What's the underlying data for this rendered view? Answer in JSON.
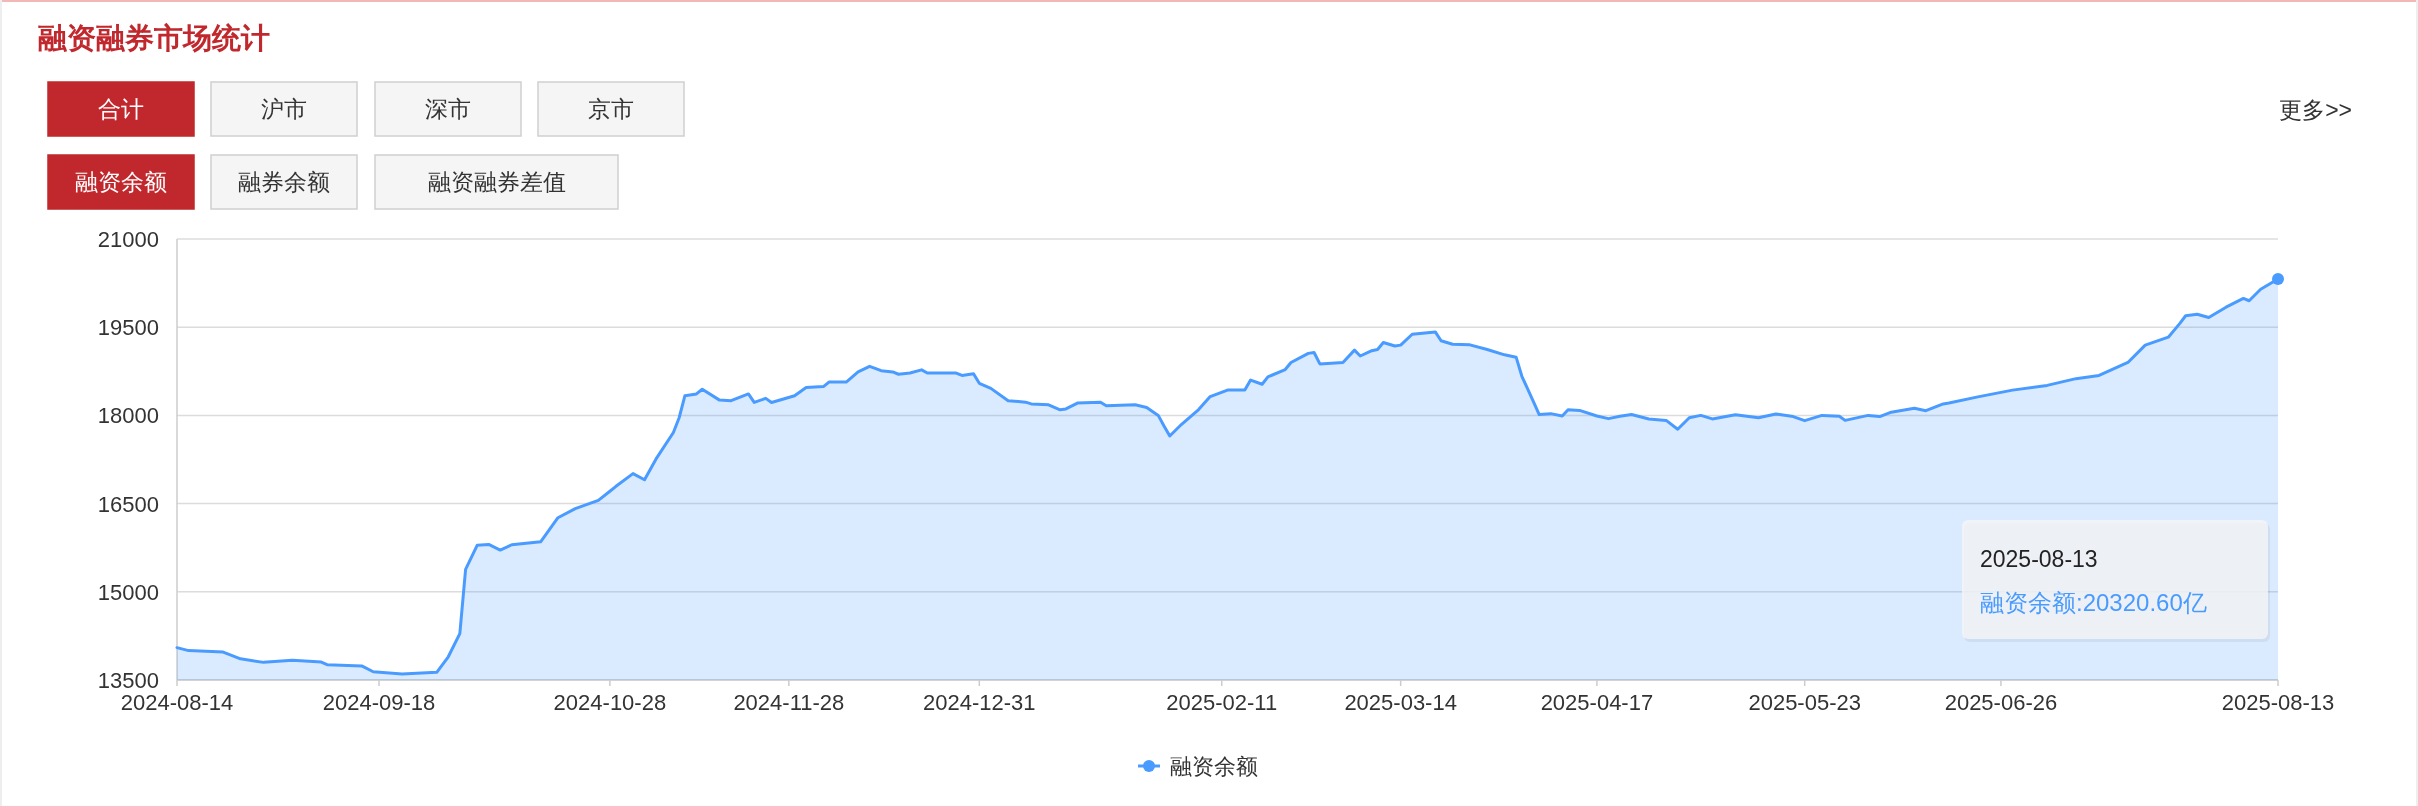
{
  "chart_data": {
    "type": "area",
    "title": "融资融券市场统计",
    "xlim": [
      "2024-08-14",
      "2025-08-13"
    ],
    "xticks": [
      "2024-08-14",
      "2024-09-18",
      "2024-10-28",
      "2024-11-28",
      "2024-12-31",
      "2025-02-11",
      "2025-03-14",
      "2025-04-17",
      "2025-05-23",
      "2025-06-26",
      "2025-08-13"
    ],
    "ylim": [
      13500,
      21000
    ],
    "yticks": [
      13500,
      15000,
      16500,
      18000,
      19500,
      21000
    ],
    "grid": "y",
    "legend": "bottom",
    "series": [
      {
        "name": "融资余额",
        "color": "#4a9bff",
        "x": [
          "2024-08-14",
          "2024-08-16",
          "2024-08-22",
          "2024-08-25",
          "2024-08-29",
          "2024-09-03",
          "2024-09-08",
          "2024-09-09",
          "2024-09-15",
          "2024-09-17",
          "2024-09-22",
          "2024-09-28",
          "2024-09-30",
          "2024-10-02",
          "2024-10-03",
          "2024-10-05",
          "2024-10-07",
          "2024-10-09",
          "2024-10-11",
          "2024-10-16",
          "2024-10-19",
          "2024-10-22",
          "2024-10-26",
          "2024-10-28",
          "2024-10-29",
          "2024-11-01",
          "2024-11-03",
          "2024-11-05",
          "2024-11-08",
          "2024-11-09",
          "2024-11-10",
          "2024-11-12",
          "2024-11-13",
          "2024-11-16",
          "2024-11-18",
          "2024-11-21",
          "2024-11-22",
          "2024-11-24",
          "2024-11-25",
          "2024-11-29",
          "2024-12-01",
          "2024-12-04",
          "2024-12-05",
          "2024-12-08",
          "2024-12-10",
          "2024-12-12",
          "2024-12-14",
          "2024-12-16",
          "2024-12-17",
          "2024-12-19",
          "2024-12-21",
          "2024-12-22",
          "2024-12-27",
          "2024-12-28",
          "2024-12-30",
          "2024-12-31",
          "2025-01-02",
          "2025-01-05",
          "2025-01-08",
          "2025-01-09",
          "2025-01-12",
          "2025-01-14",
          "2025-01-15",
          "2025-01-17",
          "2025-01-21",
          "2025-01-22",
          "2025-01-27",
          "2025-01-29",
          "2025-01-31",
          "2025-02-01",
          "2025-02-02",
          "2025-02-04",
          "2025-02-07",
          "2025-02-09",
          "2025-02-12",
          "2025-02-15",
          "2025-02-16",
          "2025-02-18",
          "2025-02-19",
          "2025-02-22",
          "2025-02-23",
          "2025-02-26",
          "2025-02-27",
          "2025-02-28",
          "2025-03-04",
          "2025-03-06",
          "2025-03-07",
          "2025-03-09",
          "2025-03-10",
          "2025-03-11",
          "2025-03-13",
          "2025-03-14",
          "2025-03-16",
          "2025-03-20",
          "2025-03-21",
          "2025-03-23",
          "2025-03-26",
          "2025-03-29",
          "2025-04-01",
          "2025-04-03",
          "2025-04-04",
          "2025-04-06",
          "2025-04-07",
          "2025-04-09",
          "2025-04-11",
          "2025-04-12",
          "2025-04-14",
          "2025-04-17",
          "2025-04-19",
          "2025-04-21",
          "2025-04-23",
          "2025-04-26",
          "2025-04-29",
          "2025-05-01",
          "2025-05-03",
          "2025-05-05",
          "2025-05-07",
          "2025-05-11",
          "2025-05-15",
          "2025-05-18",
          "2025-05-21",
          "2025-05-23",
          "2025-05-26",
          "2025-05-29",
          "2025-05-30",
          "2025-06-03",
          "2025-06-05",
          "2025-06-07",
          "2025-06-11",
          "2025-06-13",
          "2025-06-16",
          "2025-06-17",
          "2025-06-22",
          "2025-06-28",
          "2025-07-04",
          "2025-07-09",
          "2025-07-13",
          "2025-07-18",
          "2025-07-21",
          "2025-07-25",
          "2025-07-27",
          "2025-07-28",
          "2025-07-30",
          "2025-08-01",
          "2025-08-04",
          "2025-08-07",
          "2025-08-08",
          "2025-08-10",
          "2025-08-13"
        ],
        "values": [
          14050,
          14000,
          13975,
          13860,
          13800,
          13835,
          13805,
          13760,
          13740,
          13640,
          13600,
          13630,
          13895,
          14290,
          15380,
          15790,
          15805,
          15710,
          15800,
          15850,
          16260,
          16415,
          16555,
          16710,
          16790,
          17010,
          16905,
          17260,
          17710,
          17960,
          18335,
          18365,
          18445,
          18260,
          18250,
          18365,
          18220,
          18290,
          18220,
          18335,
          18475,
          18490,
          18570,
          18570,
          18740,
          18835,
          18760,
          18740,
          18700,
          18720,
          18775,
          18720,
          18720,
          18680,
          18710,
          18545,
          18460,
          18250,
          18225,
          18195,
          18180,
          18095,
          18110,
          18210,
          18225,
          18165,
          18180,
          18135,
          18000,
          17820,
          17650,
          17845,
          18100,
          18320,
          18430,
          18430,
          18600,
          18530,
          18655,
          18780,
          18900,
          19055,
          19070,
          18875,
          18900,
          19110,
          19010,
          19100,
          19120,
          19240,
          19180,
          19195,
          19380,
          19420,
          19270,
          19210,
          19200,
          19120,
          19030,
          18990,
          18665,
          18235,
          18015,
          18030,
          17990,
          18095,
          18085,
          17990,
          17945,
          17985,
          18015,
          17940,
          17915,
          17765,
          17960,
          18000,
          17940,
          18010,
          17960,
          18025,
          17980,
          17910,
          18000,
          17985,
          17915,
          18000,
          17980,
          18055,
          18120,
          18080,
          18195,
          18210,
          18315,
          18430,
          18510,
          18625,
          18680,
          18900,
          19195,
          19330,
          19565,
          19695,
          19720,
          19665,
          19840,
          19990,
          19950,
          20145,
          20320.6
        ]
      }
    ],
    "annotations": [
      "合计",
      "沪市",
      "深市",
      "京市",
      "融资余额",
      "融券余额",
      "融资融券差值",
      "更多>>",
      "2025-08-13\n融资余额:20320.60亿"
    ]
  }
}
